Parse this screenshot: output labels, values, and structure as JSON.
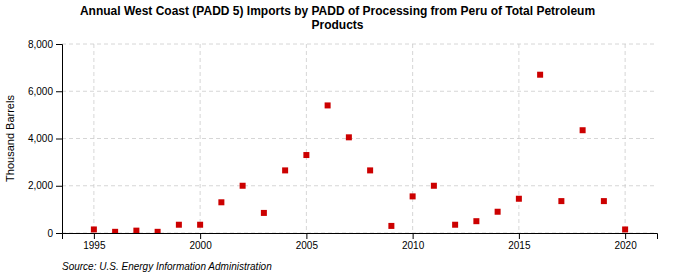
{
  "chart_data": {
    "type": "scatter",
    "title": "Annual West Coast (PADD 5) Imports by PADD of Processing from Peru of Total Petroleum\nProducts",
    "y_label": "Thousand Barrels",
    "source": "Source: U.S. Energy Information Administration",
    "x": [
      1995,
      1996,
      1997,
      1998,
      1999,
      2000,
      2001,
      2002,
      2003,
      2004,
      2005,
      2006,
      2007,
      2008,
      2009,
      2010,
      2011,
      2012,
      2013,
      2014,
      2015,
      2016,
      2017,
      2018,
      2019,
      2020
    ],
    "values": [
      150,
      50,
      100,
      50,
      350,
      350,
      1300,
      2000,
      850,
      2650,
      3300,
      5400,
      4050,
      2650,
      300,
      1550,
      2000,
      350,
      500,
      900,
      1450,
      6700,
      1350,
      4350,
      1350,
      150
    ],
    "color": "#cc0000",
    "marker": "square",
    "xlim": [
      1993.5,
      2021.5
    ],
    "ylim": [
      0,
      8000
    ],
    "xticks": [
      1995,
      2000,
      2005,
      2010,
      2015,
      2020
    ],
    "yticks": [
      0,
      {
        "value": 2000,
        "label": "2,000"
      },
      {
        "value": 4000,
        "label": "4,000"
      },
      {
        "value": 6000,
        "label": "6,000"
      },
      {
        "value": 8000,
        "label": "8,000"
      }
    ],
    "grid": true
  }
}
